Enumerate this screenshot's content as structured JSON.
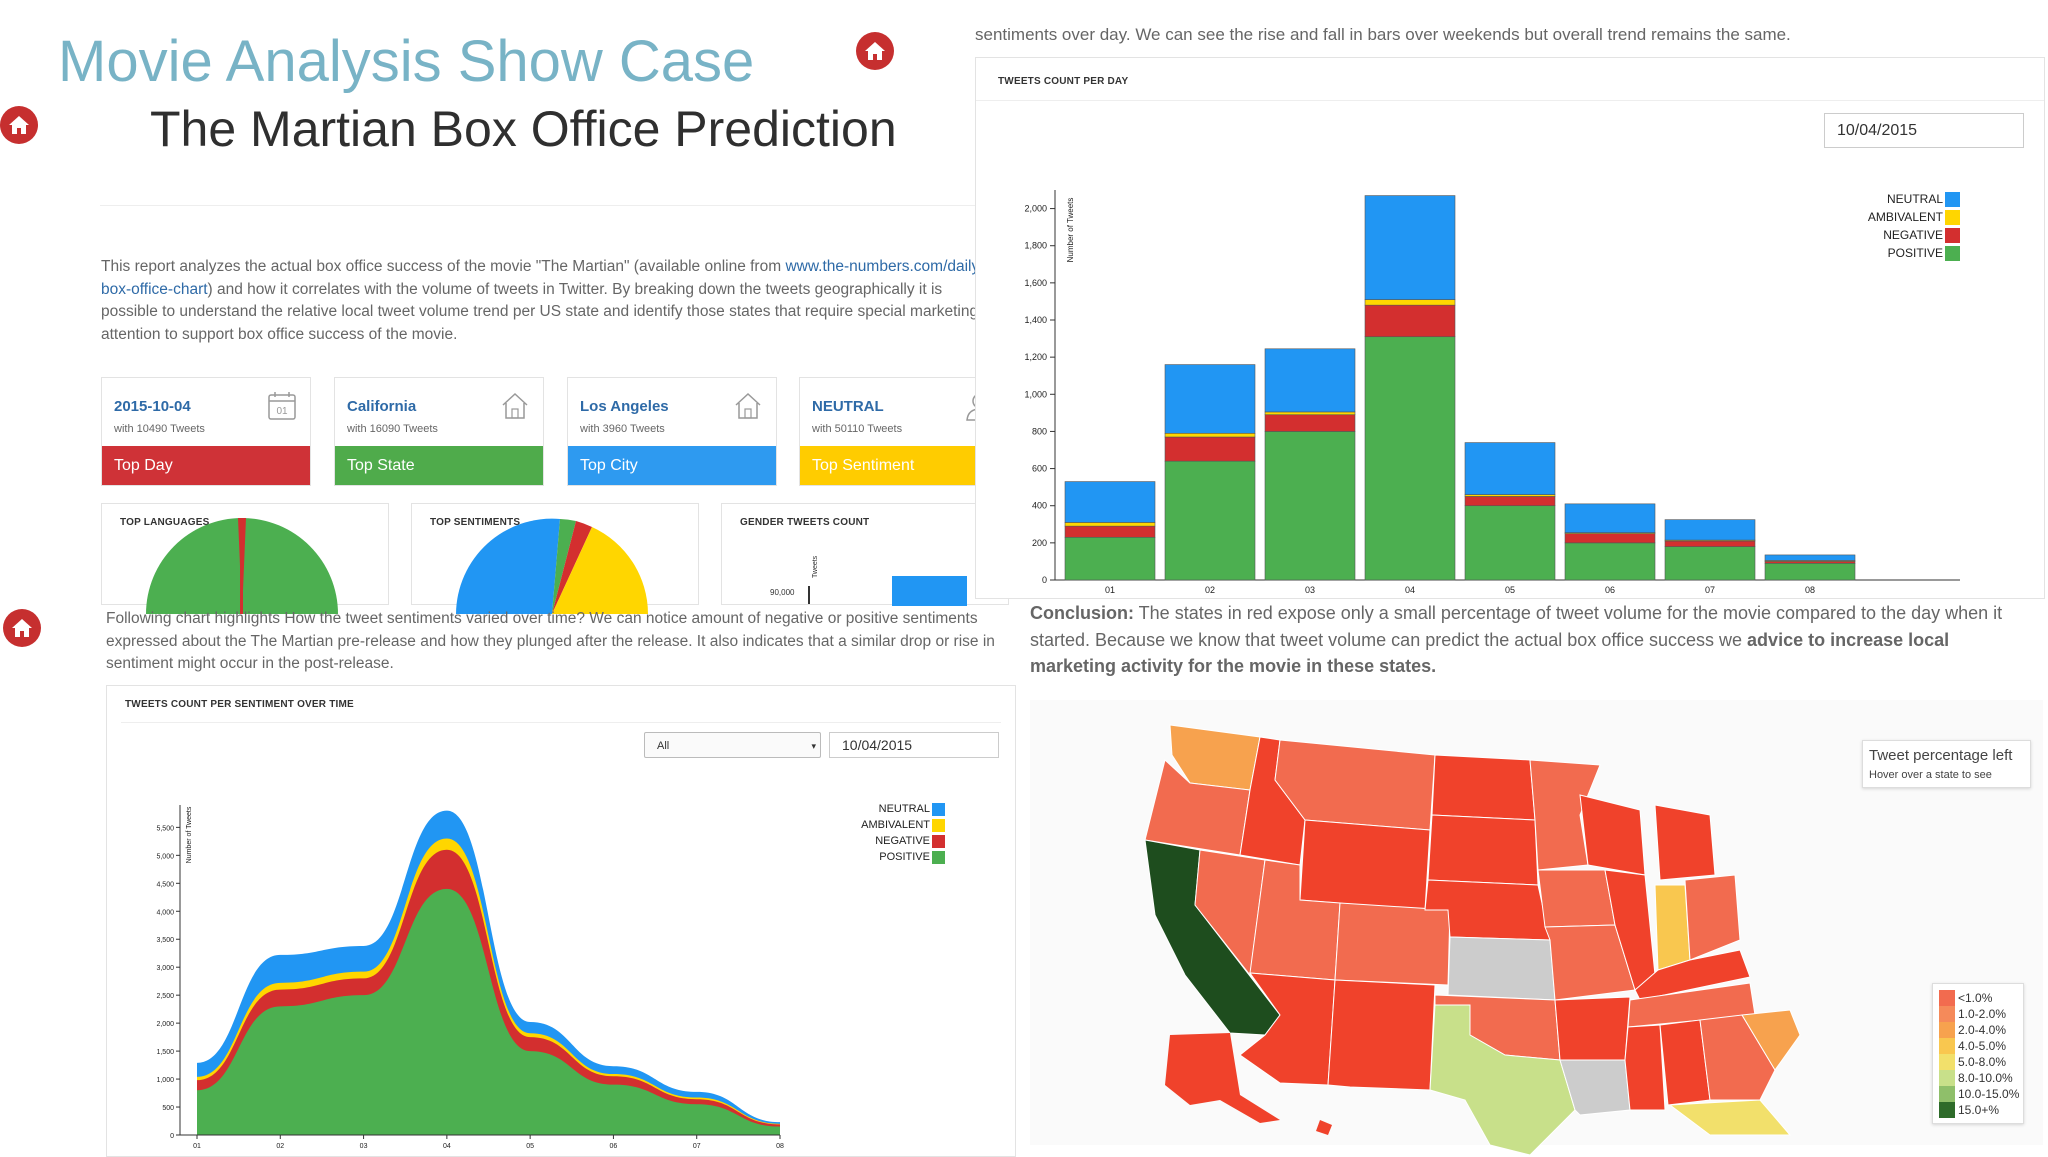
{
  "header": {
    "title": "Movie Analysis Show Case",
    "subtitle": "The Martian Box Office Prediction"
  },
  "intro": {
    "before_link": "This report analyzes the actual box office success of the movie \"The Martian\" (available online from ",
    "link": "www.the-numbers.com/daily-box-office-chart",
    "after_link": ") and how it correlates with the volume of tweets in Twitter. By breaking down the tweets geographically it is possible to understand the relative local tweet volume trend per US state and identify those states that require special marketing attention to support box office success of the movie."
  },
  "kpis": [
    {
      "value": "2015-10-04",
      "sub": "with 10490 Tweets",
      "label": "Top Day",
      "icon": "calendar-icon",
      "color": "#cf3237"
    },
    {
      "value": "California",
      "sub": "with 16090 Tweets",
      "label": "Top State",
      "icon": "house-icon",
      "color": "#4fab4b"
    },
    {
      "value": "Los Angeles",
      "sub": "with 3960 Tweets",
      "label": "Top City",
      "icon": "house-icon",
      "color": "#2e9af0"
    },
    {
      "value": "NEUTRAL",
      "sub": "with 50110 Tweets",
      "label": "Top Sentiment",
      "icon": "user-icon",
      "color": "#ffcc00"
    }
  ],
  "mini_panels": {
    "languages": "TOP LANGUAGES",
    "sentiments": "TOP SENTIMENTS",
    "gender": "GENDER TWEETS COUNT",
    "gender_tick": "90,000",
    "gender_axis": "Tweets"
  },
  "colors": {
    "neutral": "#2196f3",
    "ambivalent": "#ffd600",
    "negative": "#d32f2f",
    "positive": "#4caf50"
  },
  "legend": [
    "NEUTRAL",
    "AMBIVALENT",
    "NEGATIVE",
    "POSITIVE"
  ],
  "top_right_text": "sentiments over day. We can see the rise and fall in bars over weekends but overall trend remains the same.",
  "bar_panel": {
    "title": "TWEETS COUNT PER DAY",
    "date": "10/04/2015"
  },
  "stream_section": {
    "text": "Following chart highlights How the tweet sentiments varied over time? We can notice amount of negative or positive sentiments expressed about the The Martian pre-release and how they plunged after the release. It also indicates that a similar drop or rise in sentiment might occur in the post-release.",
    "title": "TWEETS COUNT PER SENTIMENT OVER TIME",
    "select_value": "All",
    "date": "10/04/2015"
  },
  "conclusion": {
    "label": "Conclusion:",
    "text": " The states in red expose only a small percentage of tweet volume for the movie compared to the day when it started. Because we know that tweet volume can predict the actual box office success we ",
    "bold": "advice to increase local marketing activity for the movie in these states."
  },
  "map": {
    "tooltip_title": "Tweet percentage left",
    "tooltip_sub": "Hover over a state to see",
    "scale": [
      {
        "label": "<1.0%",
        "color": "#f26b4f"
      },
      {
        "label": "1.0-2.0%",
        "color": "#f58a5a"
      },
      {
        "label": "2.0-4.0%",
        "color": "#f7a24e"
      },
      {
        "label": "4.0-5.0%",
        "color": "#f9c74f"
      },
      {
        "label": "5.0-8.0%",
        "color": "#f2e06b"
      },
      {
        "label": "8.0-10.0%",
        "color": "#c8e08a"
      },
      {
        "label": "10.0-15.0%",
        "color": "#8fbf6a"
      },
      {
        "label": "15.0+%",
        "color": "#2e6b2a"
      }
    ]
  },
  "chart_data": [
    {
      "type": "bar",
      "title": "TWEETS COUNT PER DAY",
      "ylabel": "Number of Tweets",
      "categories": [
        "01",
        "02",
        "03",
        "04",
        "05",
        "06",
        "07",
        "08"
      ],
      "ylim": [
        0,
        2100
      ],
      "yticks": [
        0,
        200,
        400,
        600,
        800,
        1000,
        1200,
        1400,
        1600,
        1800,
        2000
      ],
      "ytick_labels": [
        "0",
        "200",
        "400",
        "600",
        "800",
        "1,000",
        "1,200",
        "1,400",
        "1,600",
        "1,800",
        "2,000"
      ],
      "series": [
        {
          "name": "POSITIVE",
          "values": [
            230,
            640,
            800,
            1310,
            400,
            200,
            180,
            90
          ]
        },
        {
          "name": "NEGATIVE",
          "values": [
            60,
            130,
            90,
            170,
            50,
            50,
            30,
            10
          ]
        },
        {
          "name": "AMBIVALENT",
          "values": [
            20,
            20,
            15,
            30,
            10,
            5,
            5,
            5
          ]
        },
        {
          "name": "NEUTRAL",
          "values": [
            220,
            370,
            340,
            560,
            280,
            155,
            110,
            30
          ]
        }
      ]
    },
    {
      "type": "area",
      "title": "TWEETS COUNT PER SENTIMENT OVER TIME",
      "ylabel": "Number of Tweets",
      "x": [
        "01",
        "02",
        "03",
        "04",
        "05",
        "06",
        "07",
        "08"
      ],
      "ylim": [
        0,
        5900
      ],
      "yticks": [
        0,
        500,
        1000,
        1500,
        2000,
        2500,
        3000,
        3500,
        4000,
        4500,
        5000,
        5500
      ],
      "ytick_labels": [
        "0",
        "500",
        "1,000",
        "1,500",
        "2,000",
        "2,500",
        "3,000",
        "3,500",
        "4,000",
        "4,500",
        "5,000",
        "5,500"
      ],
      "series": [
        {
          "name": "POSITIVE",
          "values": [
            800,
            2300,
            2500,
            4400,
            1500,
            900,
            550,
            150
          ]
        },
        {
          "name": "NEGATIVE",
          "values": [
            180,
            300,
            300,
            700,
            250,
            150,
            90,
            40
          ]
        },
        {
          "name": "AMBIVALENT",
          "values": [
            60,
            120,
            120,
            200,
            70,
            40,
            30,
            10
          ]
        },
        {
          "name": "NEUTRAL",
          "values": [
            250,
            500,
            460,
            500,
            200,
            140,
            100,
            30
          ]
        }
      ]
    }
  ]
}
